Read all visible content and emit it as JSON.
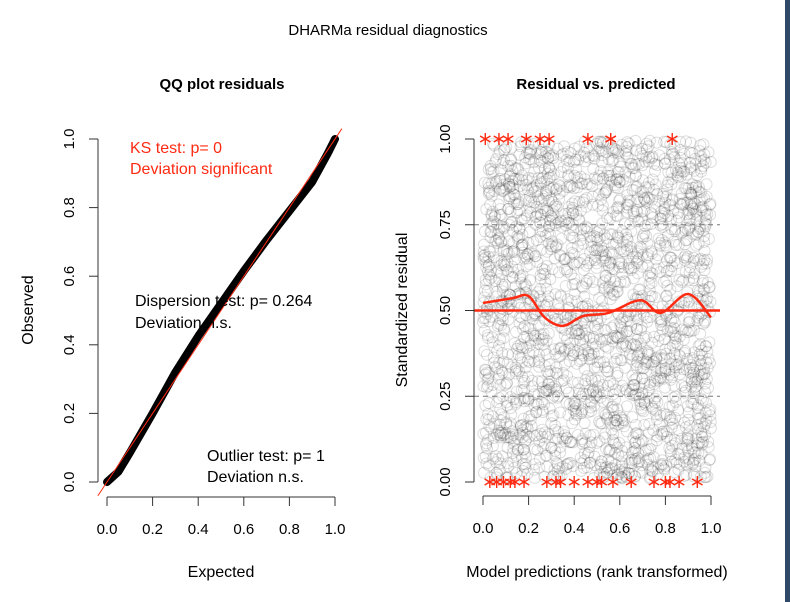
{
  "title": "DHARMa residual diagnostics",
  "colors": {
    "accent": "#ff2a12",
    "points": "#000000",
    "edge": "#2f4a66"
  },
  "chart_data": [
    {
      "type": "line",
      "title": "QQ plot residuals",
      "xlabel": "Expected",
      "ylabel": "Observed",
      "xlim": [
        0,
        1
      ],
      "ylim": [
        0,
        1
      ],
      "xticks": [
        "0.0",
        "0.2",
        "0.4",
        "0.6",
        "0.8",
        "1.0"
      ],
      "yticks": [
        "0.0",
        "0.2",
        "0.4",
        "0.6",
        "0.8",
        "1.0"
      ],
      "grid": false,
      "reference_line": {
        "slope": 1,
        "intercept": 0,
        "color": "#ff2a12"
      },
      "series": [
        {
          "x": [
            0,
            0.05,
            0.1,
            0.2,
            0.3,
            0.4,
            0.5,
            0.6,
            0.7,
            0.8,
            0.9,
            0.97,
            1.0
          ],
          "y": [
            0,
            0.03,
            0.085,
            0.2,
            0.32,
            0.425,
            0.52,
            0.615,
            0.705,
            0.79,
            0.875,
            0.96,
            1.0
          ]
        }
      ],
      "annotations": [
        {
          "lines": [
            "KS test: p= 0",
            "Deviation  significant"
          ],
          "color": "#ff2a12"
        },
        {
          "lines": [
            "Dispersion test: p= 0.264",
            "Deviation  n.s."
          ],
          "color": "#000000"
        },
        {
          "lines": [
            "Outlier test: p= 1",
            "Deviation  n.s."
          ],
          "color": "#000000"
        }
      ]
    },
    {
      "type": "scatter",
      "title": "Residual vs. predicted",
      "xlabel": "Model predictions (rank transformed)",
      "ylabel": "Standardized residual",
      "xlim": [
        0,
        1
      ],
      "ylim": [
        0,
        1
      ],
      "xticks": [
        "0.0",
        "0.2",
        "0.4",
        "0.6",
        "0.8",
        "1.0"
      ],
      "yticks": [
        "0.00",
        "0.25",
        "0.50",
        "0.75",
        "1.00"
      ],
      "grid": false,
      "hlines": [
        {
          "y": 0.25,
          "style": "dashed"
        },
        {
          "y": 0.5,
          "style": "solid",
          "color": "#ff2a12"
        },
        {
          "y": 0.75,
          "style": "dashed"
        }
      ],
      "outliers_top_x": [
        0.01,
        0.07,
        0.11,
        0.19,
        0.25,
        0.29,
        0.46,
        0.56,
        0.56,
        0.83
      ],
      "outliers_bottom_x": [
        0.03,
        0.06,
        0.09,
        0.12,
        0.14,
        0.18,
        0.28,
        0.32,
        0.34,
        0.4,
        0.46,
        0.5,
        0.52,
        0.57,
        0.65,
        0.75,
        0.8,
        0.82,
        0.86,
        0.94
      ],
      "smoother": {
        "x": [
          0,
          0.13,
          0.2,
          0.27,
          0.35,
          0.44,
          0.55,
          0.69,
          0.78,
          0.9,
          1.0
        ],
        "y": [
          0.522,
          0.536,
          0.542,
          0.48,
          0.455,
          0.484,
          0.493,
          0.53,
          0.493,
          0.548,
          0.48
        ],
        "color": "#ff2a12"
      }
    }
  ]
}
